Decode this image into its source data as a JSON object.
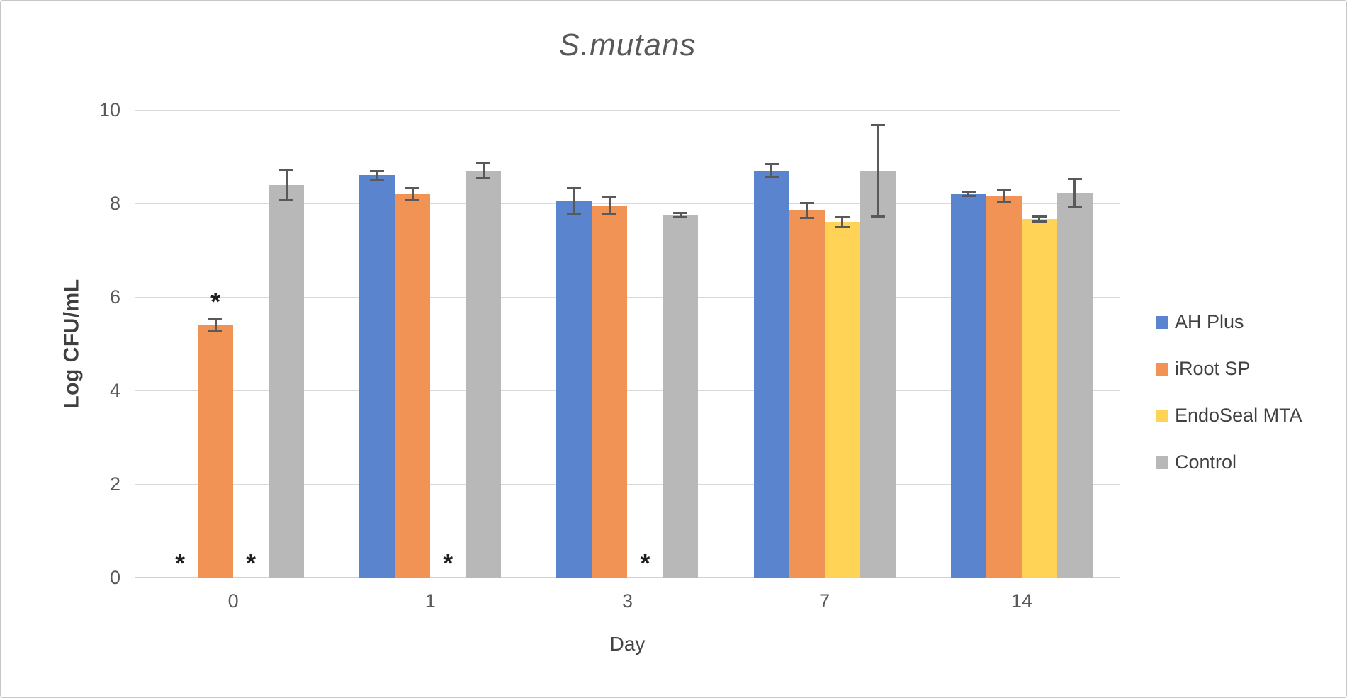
{
  "chart_data": {
    "type": "bar",
    "title": "S.mutans",
    "xlabel": "Day",
    "ylabel": "Log CFU/mL",
    "ylim": [
      0,
      10
    ],
    "yticks": [
      0,
      2,
      4,
      6,
      8,
      10
    ],
    "grid": true,
    "legend_position": "right-middle",
    "categories": [
      "0",
      "1",
      "3",
      "7",
      "14"
    ],
    "missing_marker": "*",
    "colors": {
      "grid": "#d9d9d9",
      "error_bar": "#595959",
      "text": "#595959"
    },
    "series": [
      {
        "name": "AH Plus",
        "color": "#5B84CE",
        "values": [
          null,
          8.6,
          8.05,
          8.7,
          8.2
        ],
        "errors": [
          null,
          0.12,
          0.3,
          0.16,
          0.06
        ],
        "sig_above": [
          false,
          false,
          false,
          false,
          false
        ]
      },
      {
        "name": "iRoot SP",
        "color": "#F09355",
        "values": [
          5.4,
          8.2,
          7.95,
          7.85,
          8.15
        ],
        "errors": [
          0.15,
          0.15,
          0.2,
          0.18,
          0.15
        ],
        "sig_above": [
          true,
          false,
          false,
          false,
          false
        ]
      },
      {
        "name": "EndoSeal MTA",
        "color": "#FFD456",
        "values": [
          null,
          null,
          null,
          7.6,
          7.67
        ],
        "errors": [
          null,
          null,
          null,
          0.13,
          0.08
        ],
        "sig_above": [
          false,
          false,
          false,
          false,
          false
        ]
      },
      {
        "name": "Control",
        "color": "#B8B8B8",
        "values": [
          8.4,
          8.7,
          7.75,
          8.7,
          8.22
        ],
        "errors": [
          0.35,
          0.18,
          0.07,
          1.0,
          0.33
        ],
        "sig_above": [
          false,
          false,
          false,
          false,
          false
        ]
      }
    ]
  }
}
